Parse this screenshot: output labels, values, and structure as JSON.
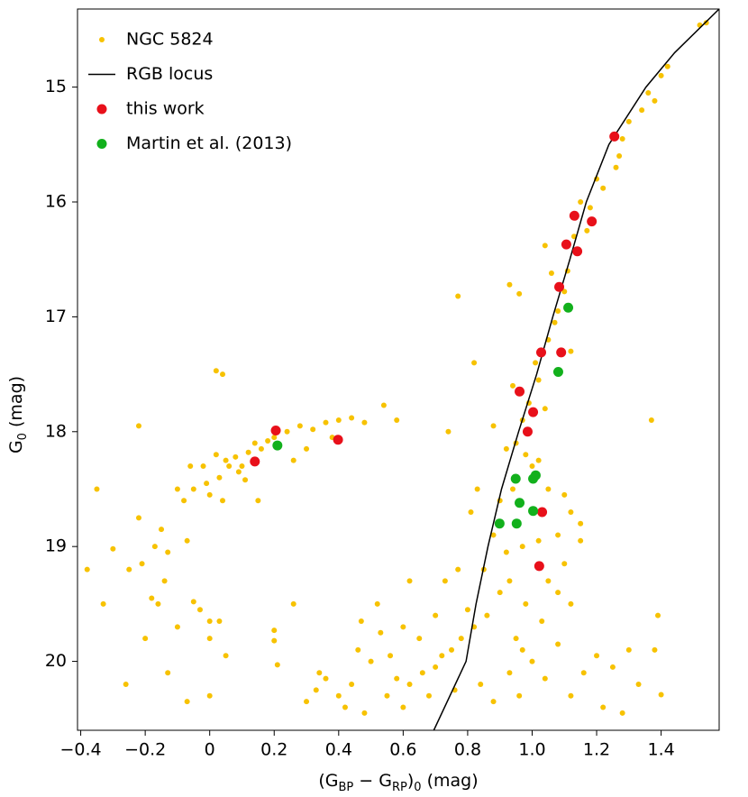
{
  "chart_data": {
    "type": "scatter",
    "xlabel": [
      "(G",
      "BP",
      " − G",
      "RP",
      ")",
      "0",
      " (mag)"
    ],
    "ylabel": [
      "G",
      "0",
      " (mag)"
    ],
    "xlim": [
      -0.41,
      1.58
    ],
    "ylim": [
      20.6,
      14.32
    ],
    "xticks": [
      {
        "value": -0.4,
        "label": "−0.4"
      },
      {
        "value": -0.2,
        "label": "−0.2"
      },
      0,
      0.2,
      0.4,
      0.6,
      0.8,
      {
        "value": 1.0,
        "label": "1.0"
      },
      1.2,
      1.4
    ],
    "yticks": [
      15,
      16,
      17,
      18,
      19,
      20
    ],
    "legend": "upper left",
    "series": [
      {
        "name": "NGC 5824",
        "color": "#f7c200",
        "style": "points",
        "x": [
          1.54,
          1.52,
          1.42,
          1.4,
          1.36,
          1.38,
          1.34,
          1.3,
          1.28,
          1.27,
          1.26,
          1.22,
          1.2,
          1.18,
          1.15,
          1.17,
          1.13,
          1.11,
          1.04,
          1.08,
          1.07,
          1.05,
          1.01,
          1.06,
          0.96,
          0.93,
          0.77,
          0.82,
          0.97,
          0.94,
          1.02,
          0.99,
          0.95,
          0.98,
          0.92,
          1.0,
          0.94,
          1.02,
          1.05,
          1.1,
          1.12,
          1.08,
          1.02,
          0.97,
          0.92,
          0.88,
          0.85,
          1.05,
          1.1,
          1.15,
          1.12,
          1.08,
          0.98,
          0.9,
          0.86,
          0.82,
          0.8,
          0.78,
          0.75,
          0.72,
          0.7,
          0.66,
          0.62,
          0.58,
          0.55,
          0.5,
          0.46,
          0.44,
          0.4,
          0.36,
          0.33,
          0.3,
          0.42,
          0.48,
          0.6,
          0.68,
          0.76,
          0.84,
          0.88,
          0.93,
          0.97,
          1.0,
          1.04,
          1.08,
          1.12,
          1.16,
          1.2,
          1.25,
          1.3,
          1.33,
          1.22,
          1.28,
          1.38,
          1.39,
          1.4,
          1.37,
          1.15,
          1.12,
          1.1,
          1.04,
          0.74,
          0.83,
          0.81,
          0.77,
          0.73,
          0.7,
          0.65,
          0.6,
          0.62,
          0.56,
          0.53,
          0.47,
          0.52,
          0.88,
          0.9,
          0.93,
          0.95,
          1.03,
          0.96,
          0.02,
          0.04,
          -0.22,
          -0.02,
          0.02,
          0.05,
          0.08,
          0.1,
          0.12,
          0.14,
          0.16,
          0.18,
          0.2,
          0.24,
          0.28,
          0.32,
          0.36,
          0.4,
          0.44,
          0.48,
          0.54,
          0.58,
          0.06,
          0.09,
          0.11,
          0.03,
          -0.01,
          -0.05,
          -0.08,
          -0.1,
          -0.06,
          0.0,
          0.04,
          0.15,
          0.26,
          0.3,
          0.38,
          -0.15,
          -0.17,
          -0.13,
          -0.07,
          -0.22,
          -0.38,
          -0.3,
          -0.25,
          -0.21,
          -0.14,
          -0.33,
          -0.18,
          -0.16,
          -0.05,
          -0.03,
          0.0,
          0.03,
          -0.1,
          -0.2,
          0.0,
          0.2,
          0.26,
          0.2,
          -0.26,
          -0.13,
          -0.07,
          0.0,
          0.05,
          0.21,
          0.34,
          -0.35
        ],
        "y": [
          14.44,
          14.46,
          14.82,
          14.9,
          15.05,
          15.12,
          15.2,
          15.3,
          15.45,
          15.6,
          15.7,
          15.88,
          15.8,
          16.05,
          16.0,
          16.25,
          16.3,
          16.6,
          16.38,
          16.95,
          17.05,
          17.2,
          17.4,
          16.62,
          16.8,
          16.72,
          16.82,
          17.4,
          17.9,
          17.6,
          17.55,
          17.75,
          18.1,
          18.2,
          18.15,
          18.3,
          18.5,
          18.25,
          18.5,
          18.55,
          18.7,
          18.9,
          18.95,
          19.0,
          19.05,
          18.9,
          19.2,
          19.3,
          19.15,
          18.95,
          19.5,
          19.4,
          19.5,
          19.4,
          19.6,
          19.7,
          19.55,
          19.8,
          19.9,
          19.95,
          20.05,
          20.1,
          20.2,
          20.15,
          20.3,
          20.0,
          19.9,
          20.2,
          20.3,
          20.15,
          20.25,
          20.35,
          20.4,
          20.45,
          20.4,
          20.3,
          20.25,
          20.2,
          20.35,
          20.1,
          19.9,
          20.0,
          20.15,
          19.85,
          20.3,
          20.1,
          19.95,
          20.05,
          19.9,
          20.2,
          20.4,
          20.45,
          19.9,
          19.6,
          20.29,
          17.9,
          18.8,
          17.3,
          16.78,
          17.8,
          18.0,
          18.5,
          18.7,
          19.2,
          19.3,
          19.6,
          19.8,
          19.7,
          19.3,
          19.95,
          19.75,
          19.65,
          19.5,
          17.95,
          18.6,
          19.3,
          19.8,
          19.65,
          20.3,
          17.47,
          17.5,
          17.95,
          18.3,
          18.2,
          18.25,
          18.22,
          18.3,
          18.18,
          18.1,
          18.15,
          18.08,
          18.05,
          18.0,
          17.95,
          17.98,
          17.92,
          17.9,
          17.88,
          17.92,
          17.77,
          17.9,
          18.3,
          18.35,
          18.42,
          18.4,
          18.45,
          18.5,
          18.6,
          18.5,
          18.3,
          18.55,
          18.6,
          18.6,
          18.25,
          18.15,
          18.05,
          18.85,
          19.0,
          19.05,
          18.95,
          18.75,
          19.2,
          19.02,
          19.2,
          19.15,
          19.3,
          19.5,
          19.45,
          19.5,
          19.48,
          19.55,
          19.65,
          19.65,
          19.7,
          19.8,
          19.8,
          19.73,
          19.5,
          19.82,
          20.2,
          20.1,
          20.35,
          20.3,
          19.95,
          20.03,
          20.1,
          18.5
        ]
      },
      {
        "name": "RGB locus",
        "color": "#000000",
        "style": "line",
        "x": [
          0.695,
          0.795,
          0.826,
          0.863,
          0.905,
          0.958,
          1.014,
          1.064,
          1.117,
          1.168,
          1.238,
          1.353,
          1.442,
          1.58
        ],
        "y": [
          20.6,
          20.0,
          19.5,
          19.0,
          18.5,
          18.0,
          17.5,
          17.0,
          16.5,
          16.0,
          15.5,
          15.0,
          14.7,
          14.32
        ]
      },
      {
        "name": "this work",
        "color": "#e8101a",
        "style": "points",
        "x": [
          1.255,
          1.131,
          1.185,
          1.106,
          1.14,
          1.084,
          1.028,
          1.09,
          0.961,
          1.003,
          0.986,
          0.205,
          0.398,
          0.14,
          1.031,
          1.022
        ],
        "y": [
          15.43,
          16.12,
          16.17,
          16.37,
          16.43,
          16.74,
          17.31,
          17.31,
          17.65,
          17.83,
          18.0,
          17.99,
          18.07,
          18.26,
          18.7,
          19.17
        ]
      },
      {
        "name": "Martin et al. (2013)",
        "color": "#12b01c",
        "style": "points",
        "x": [
          1.112,
          1.081,
          0.21,
          0.949,
          1.011,
          1.003,
          0.961,
          1.003,
          0.899,
          0.952
        ],
        "y": [
          16.92,
          17.48,
          18.12,
          18.41,
          18.38,
          18.41,
          18.62,
          18.69,
          18.8,
          18.8
        ]
      }
    ]
  }
}
